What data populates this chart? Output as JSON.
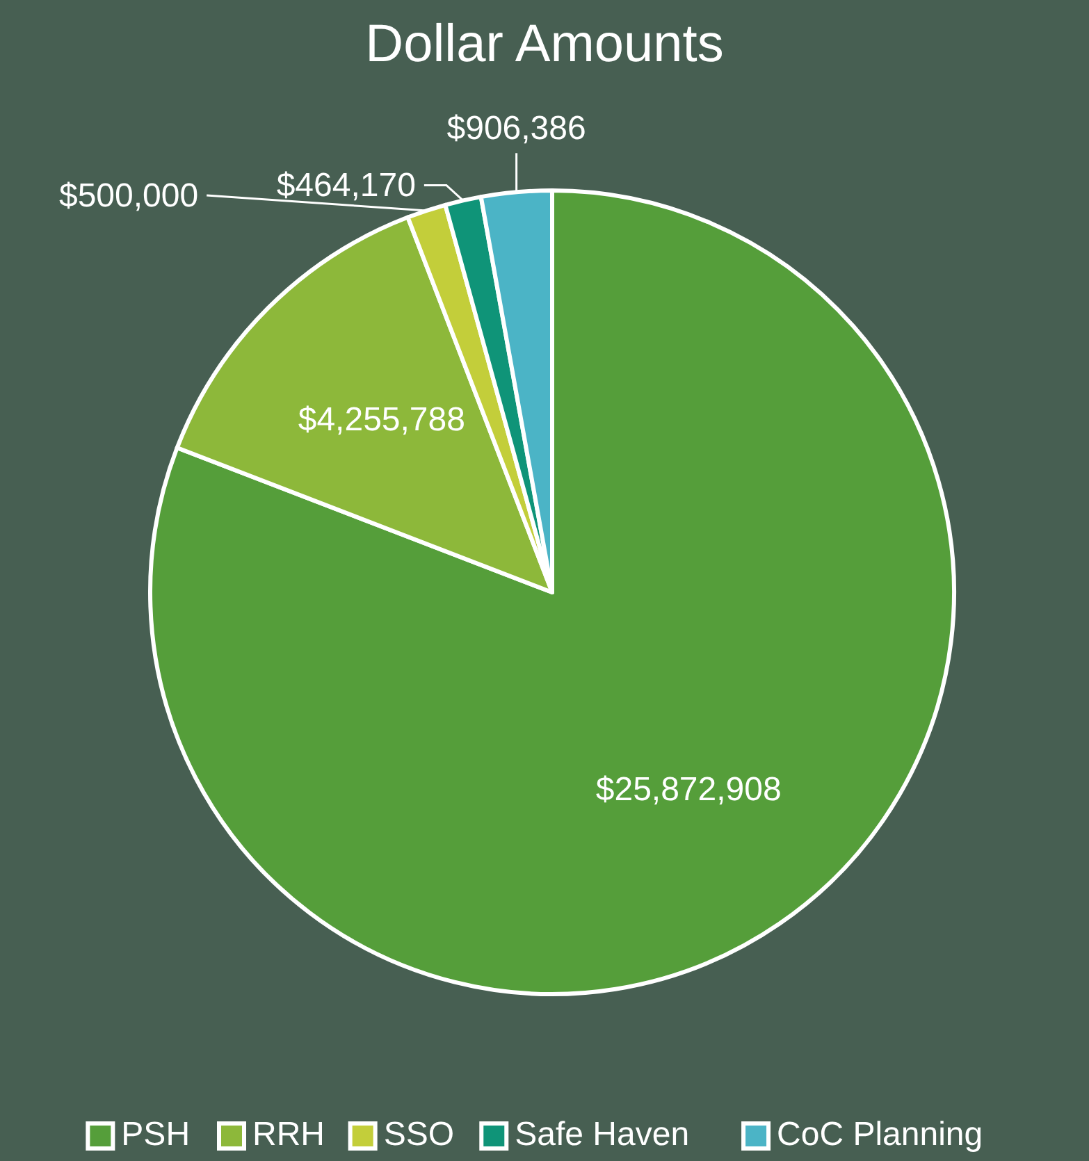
{
  "chart_data": {
    "type": "pie",
    "title": "Dollar Amounts",
    "categories": [
      "PSH",
      "RRH",
      "SSO",
      "Safe Haven",
      "CoC Planning"
    ],
    "values": [
      25872908,
      4255788,
      500000,
      464170,
      906386
    ],
    "colors": [
      "#559e3a",
      "#8db83a",
      "#c3ce3a",
      "#0f9478",
      "#4bb4c6"
    ],
    "value_labels": [
      "$25,872,908",
      "$4,255,788",
      "$500,000",
      "$464,170",
      "$906,386"
    ],
    "legend": "bottom"
  }
}
